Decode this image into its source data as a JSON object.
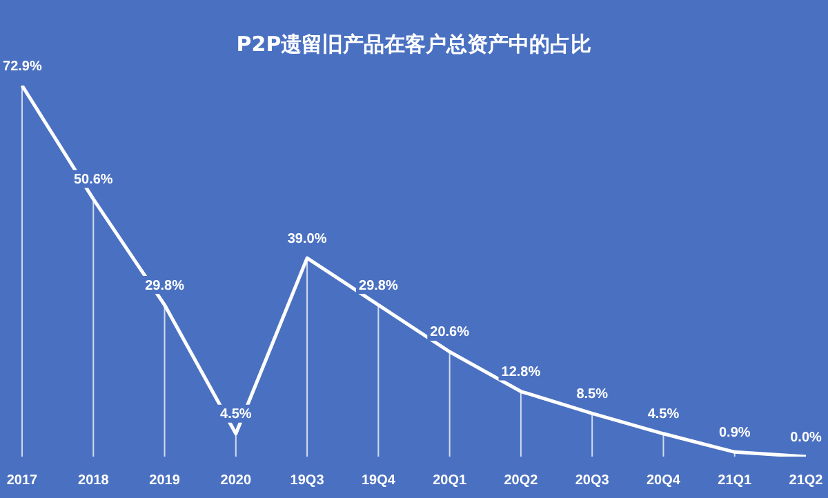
{
  "chart_data": {
    "type": "line",
    "title": "P2P遗留旧产品在客户总资产中的占比",
    "categories": [
      "2017",
      "2018",
      "2019",
      "2020",
      "19Q3",
      "19Q4",
      "20Q1",
      "20Q2",
      "20Q3",
      "20Q4",
      "21Q1",
      "21Q2"
    ],
    "series": [
      {
        "color": "#ffffff",
        "values": [
          72.9,
          50.6,
          29.8,
          4.5,
          39.0,
          29.8,
          20.6,
          12.8,
          8.5,
          4.5,
          0.9,
          0.0
        ],
        "value_labels": [
          "72.9%",
          "50.6%",
          "29.8%",
          "4.5%",
          "39.0%",
          "29.8%",
          "20.6%",
          "12.8%",
          "8.5%",
          "4.5%",
          "0.9%",
          "0.0%"
        ]
      }
    ],
    "marker": "none",
    "grid": "x",
    "legend": false
  }
}
